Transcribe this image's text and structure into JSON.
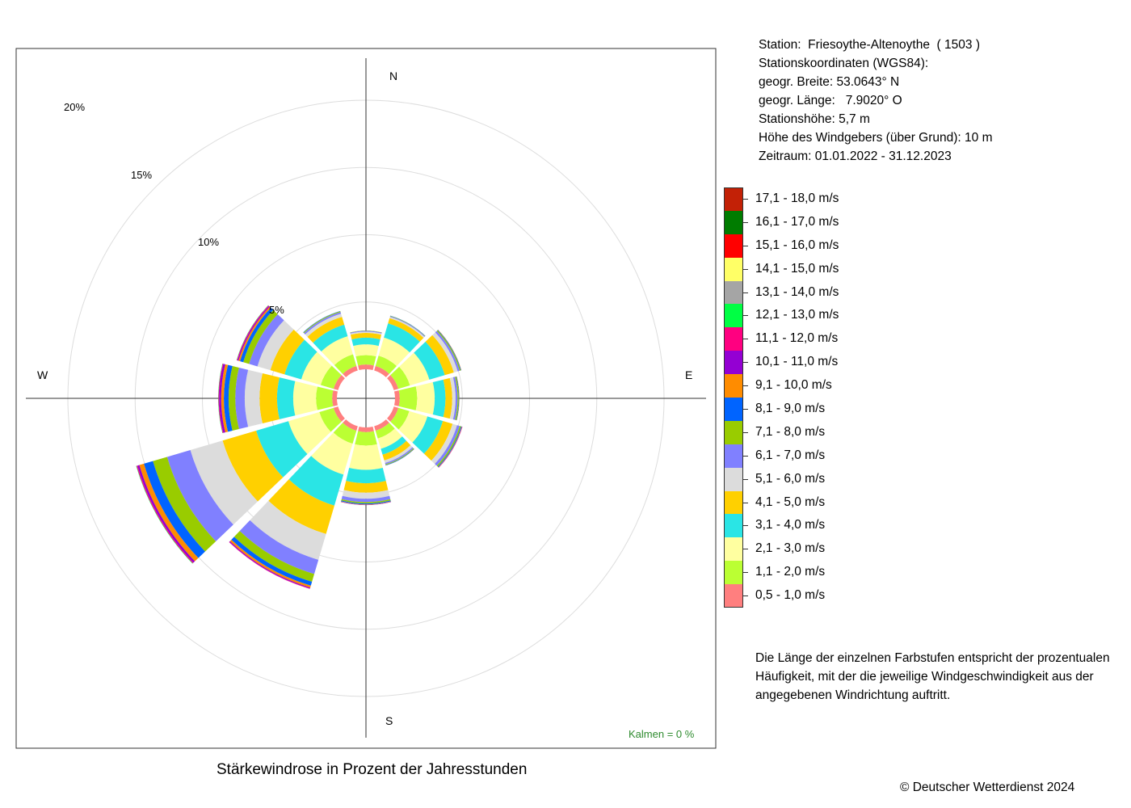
{
  "station": {
    "line_station": "Station:  Friesoythe-Altenoythe  ( 1503 )",
    "line_coords_header": "Stationskoordinaten (WGS84):",
    "line_lat": "geogr. Breite: 53.0643° N",
    "line_lon": "geogr. Länge:   7.9020° O",
    "line_height": "Stationshöhe: 5,7 m",
    "line_anemometer": "Höhe des Windgebers (über Grund): 10 m",
    "line_period": "Zeitraum: 01.01.2022 - 31.12.2023"
  },
  "legend": [
    {
      "label": "17,1 - 18,0 m/s",
      "color": "#C32106"
    },
    {
      "label": "16,1 - 17,0 m/s",
      "color": "#007C00"
    },
    {
      "label": "15,1 - 16,0 m/s",
      "color": "#FF0000"
    },
    {
      "label": "14,1 - 15,0 m/s",
      "color": "#FFFF66"
    },
    {
      "label": "13,1 - 14,0 m/s",
      "color": "#A5A5A5"
    },
    {
      "label": "12,1 - 13,0 m/s",
      "color": "#00FF44"
    },
    {
      "label": "11,1 - 12,0 m/s",
      "color": "#FF0080"
    },
    {
      "label": "10,1 - 11,0 m/s",
      "color": "#9400D3"
    },
    {
      "label": "9,1 - 10,0 m/s",
      "color": "#FF8C00"
    },
    {
      "label": "8,1 - 9,0 m/s",
      "color": "#0064FF"
    },
    {
      "label": "7,1 - 8,0 m/s",
      "color": "#99CC00"
    },
    {
      "label": "6,1 - 7,0 m/s",
      "color": "#8080FF"
    },
    {
      "label": "5,1 - 6,0 m/s",
      "color": "#DCDCDC"
    },
    {
      "label": "4,1 - 5,0 m/s",
      "color": "#FFD000"
    },
    {
      "label": "3,1 - 4,0 m/s",
      "color": "#2AE5E5"
    },
    {
      "label": "2,1 - 3,0 m/s",
      "color": "#FFFFA0"
    },
    {
      "label": "1,1 - 2,0 m/s",
      "color": "#BBFF33"
    },
    {
      "label": "0,5 - 1,0 m/s",
      "color": "#FF7F7F"
    }
  ],
  "note": "Die Länge der einzelnen Farbstufen entspricht der prozentualen Häufigkeit, mit der die jeweilige Windgeschwindigkeit aus der angegebenen Windrichtung auftritt.",
  "caption": "Stärkewindrose in Prozent der Jahresstunden",
  "copyright": "© Deutscher Wetterdienst  2024",
  "chart_data": {
    "type": "wind-rose",
    "direction_labels": [
      "N",
      "E",
      "S",
      "W"
    ],
    "ring_labels": [
      "5%",
      "10%",
      "15%",
      "20%"
    ],
    "ring_values": [
      5,
      10,
      15,
      20
    ],
    "calm_label": "Kalmen  =  0 %",
    "speed_classes": [
      "0,5 - 1,0 m/s",
      "1,1 - 2,0 m/s",
      "2,1 - 3,0 m/s",
      "3,1 - 4,0 m/s",
      "4,1 - 5,0 m/s",
      "5,1 - 6,0 m/s",
      "6,1 - 7,0 m/s",
      "7,1 - 8,0 m/s",
      "8,1 - 9,0 m/s",
      "9,1 - 10,0 m/s",
      "10,1 - 11,0 m/s",
      "11,1 - 12,0 m/s",
      "12,1 - 13,0 m/s",
      "13,1 - 14,0 m/s",
      "14,1 - 15,0 m/s",
      "15,1 - 16,0 m/s",
      "16,1 - 17,0 m/s",
      "17,1 - 18,0 m/s"
    ],
    "sectors": [
      {
        "direction_deg": 0,
        "values": [
          0.35,
          0.7,
          0.8,
          0.5,
          0.35,
          0.1,
          0.06,
          0.02
        ]
      },
      {
        "direction_deg": 30,
        "values": [
          0.35,
          0.8,
          1.4,
          1.1,
          0.4,
          0.1,
          0.05,
          0.03,
          0.02
        ]
      },
      {
        "direction_deg": 60,
        "values": [
          0.35,
          0.9,
          1.5,
          1.2,
          0.7,
          0.3,
          0.15,
          0.08,
          0.04,
          0.02
        ]
      },
      {
        "direction_deg": 90,
        "values": [
          0.35,
          1.3,
          1.3,
          0.8,
          0.5,
          0.25,
          0.15,
          0.08,
          0.04,
          0.02
        ]
      },
      {
        "direction_deg": 120,
        "values": [
          0.35,
          0.85,
          1.4,
          1.2,
          0.75,
          0.35,
          0.2,
          0.1,
          0.06,
          0.03,
          0.02,
          0.01
        ]
      },
      {
        "direction_deg": 150,
        "values": [
          0.35,
          0.6,
          0.8,
          0.45,
          0.45,
          0.2,
          0.1,
          0.06,
          0.03,
          0.01
        ]
      },
      {
        "direction_deg": 180,
        "values": [
          0.35,
          1.0,
          1.8,
          1.0,
          0.7,
          0.45,
          0.25,
          0.1,
          0.07,
          0.03,
          0.02
        ]
      },
      {
        "direction_deg": 210,
        "values": [
          0.35,
          1.0,
          2.4,
          2.4,
          2.2,
          2.0,
          1.1,
          0.6,
          0.3,
          0.15,
          0.07,
          0.03
        ]
      },
      {
        "direction_deg": 240,
        "values": [
          0.35,
          1.1,
          2.4,
          2.5,
          2.6,
          2.5,
          1.8,
          1.1,
          0.7,
          0.35,
          0.15,
          0.07,
          0.03
        ]
      },
      {
        "direction_deg": 270,
        "values": [
          0.35,
          1.2,
          1.7,
          1.2,
          1.3,
          1.1,
          0.7,
          0.5,
          0.35,
          0.2,
          0.15,
          0.05,
          0.02
        ]
      },
      {
        "direction_deg": 300,
        "values": [
          0.35,
          1.0,
          1.5,
          1.3,
          1.1,
          1.0,
          0.65,
          0.45,
          0.25,
          0.12,
          0.08,
          0.05,
          0.02
        ]
      },
      {
        "direction_deg": 330,
        "values": [
          0.35,
          0.9,
          1.4,
          0.9,
          0.6,
          0.25,
          0.12,
          0.06,
          0.03
        ]
      }
    ]
  }
}
